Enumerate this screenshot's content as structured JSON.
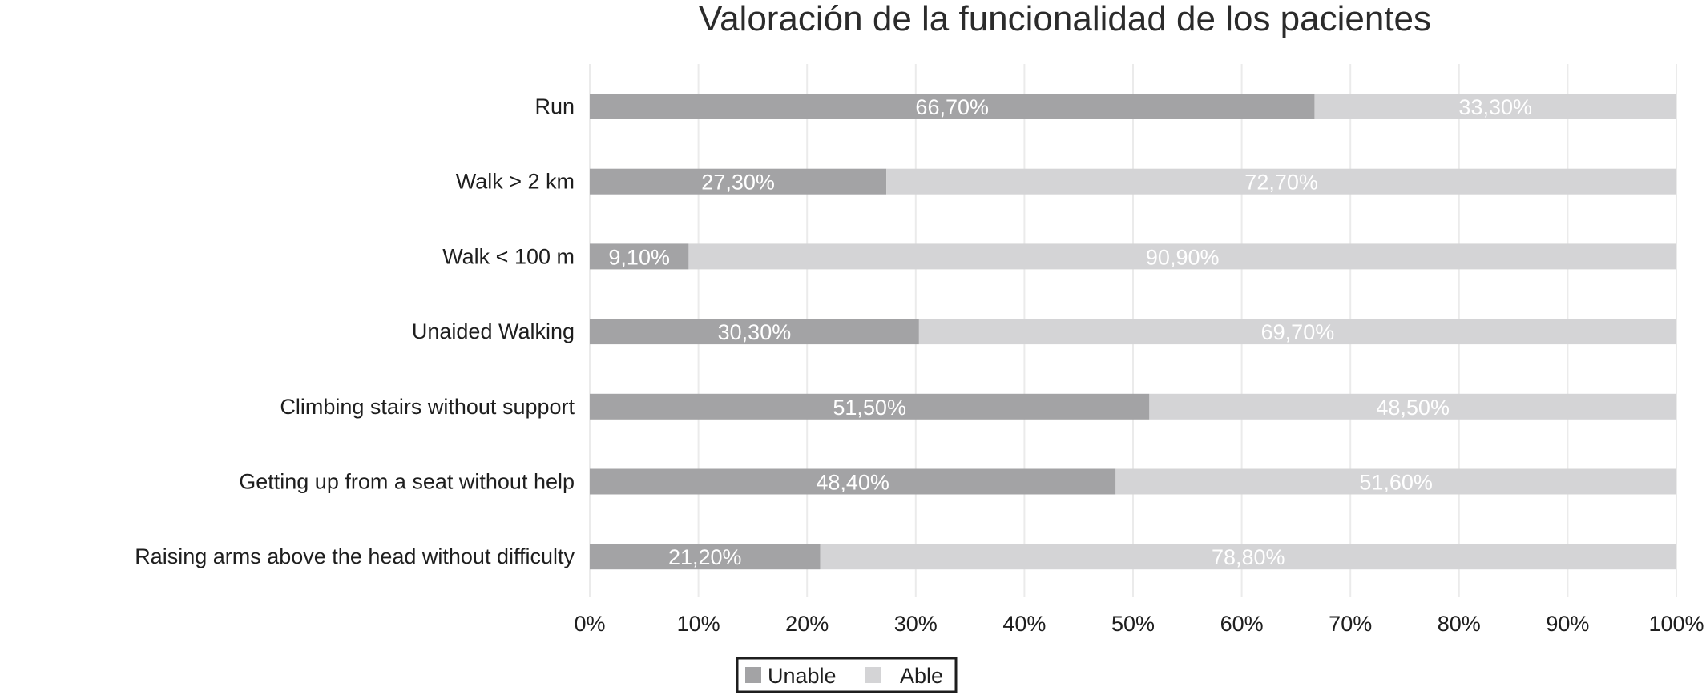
{
  "chart_data": {
    "type": "bar",
    "orientation": "horizontal",
    "stacked": true,
    "title": "Valoración de la funcionalidad de los pacientes",
    "categories": [
      "Run",
      "Walk > 2 km",
      "Walk < 100 m",
      "Unaided Walking",
      "Climbing stairs without support",
      "Getting up from a seat without help",
      "Raising arms above the head without difficulty"
    ],
    "series": [
      {
        "name": "Unable",
        "values": [
          66.7,
          27.3,
          9.1,
          30.3,
          51.5,
          48.4,
          21.2
        ],
        "labels": [
          "66,70%",
          "27,30%",
          "9,10%",
          "30,30%",
          "51,50%",
          "48,40%",
          "21,20%"
        ],
        "color": "#a3a3a5"
      },
      {
        "name": "Able",
        "values": [
          33.3,
          72.7,
          90.9,
          69.7,
          48.5,
          51.6,
          78.8
        ],
        "labels": [
          "33,30%",
          "72,70%",
          "90,90%",
          "69,70%",
          "48,50%",
          "51,60%",
          "78,80%"
        ],
        "color": "#d4d4d6"
      }
    ],
    "xlim": [
      0,
      100
    ],
    "xticks": [
      "0%",
      "10%",
      "20%",
      "30%",
      "40%",
      "50%",
      "60%",
      "70%",
      "80%",
      "90%",
      "100%"
    ],
    "xlabel": "",
    "ylabel": "",
    "grid": true,
    "legend_position": "bottom"
  }
}
